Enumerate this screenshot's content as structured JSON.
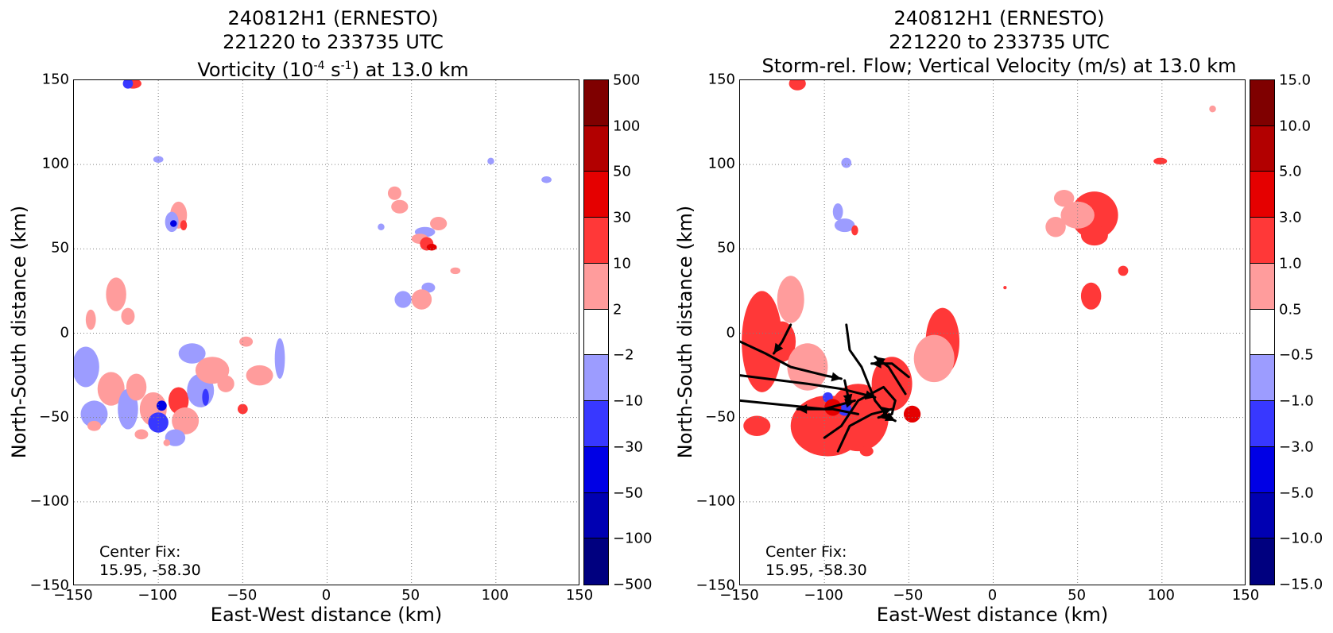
{
  "panels": [
    {
      "id": "left",
      "title_lines": [
        "240812H1 (ERNESTO)",
        "221220 to 233735 UTC"
      ],
      "title_line3": {
        "pre": "Vorticity (10",
        "sup1": "-4",
        "mid": " s",
        "sup2": "-1",
        "post": ") at 13.0 km"
      },
      "xlabel": "East-West distance (km)",
      "ylabel": "North-South distance (km)",
      "center_fix_label": "Center Fix:",
      "center_fix_value": "15.95, -58.30",
      "colorbar_labels": [
        "500",
        "100",
        "50",
        "30",
        "10",
        "2",
        "−2",
        "−10",
        "−30",
        "−50",
        "−100",
        "−500"
      ]
    },
    {
      "id": "right",
      "title_lines": [
        "240812H1 (ERNESTO)",
        "221220 to 233735 UTC"
      ],
      "title_line3": {
        "pre": "Storm-rel. Flow; Vertical Velocity (m/s) at 13.0 km",
        "sup1": "",
        "mid": "",
        "sup2": "",
        "post": ""
      },
      "xlabel": "East-West distance (km)",
      "ylabel": "North-South distance (km)",
      "center_fix_label": "Center Fix:",
      "center_fix_value": "15.95, -58.30",
      "colorbar_labels": [
        "15.0",
        "10.0",
        "5.0",
        "3.0",
        "1.0",
        "0.5",
        "−0.5",
        "−1.0",
        "−3.0",
        "−5.0",
        "−10.0",
        "−15.0"
      ]
    }
  ],
  "colors": {
    "levels": [
      "#7f0000",
      "#b20000",
      "#e50000",
      "#ff3838",
      "#ff9c9c",
      "#ffffff",
      "#9c9cff",
      "#3838ff",
      "#0000e5",
      "#0000b2",
      "#00007f"
    ],
    "streamline": "#000000",
    "grid": "#808080"
  },
  "chart_data": [
    {
      "type": "heatmap",
      "title": "240812H1 (ERNESTO) 221220 to 233735 UTC Vorticity (10^-4 s^-1) at 13.0 km",
      "xlabel": "East-West distance (km)",
      "ylabel": "North-South distance (km)",
      "xlim": [
        -150,
        150
      ],
      "ylim": [
        -150,
        150
      ],
      "xticks": [
        "−150",
        "−100",
        "−50",
        "0",
        "50",
        "100",
        "150"
      ],
      "yticks": [
        "150",
        "100",
        "50",
        "0",
        "−50",
        "−100",
        "−150"
      ],
      "grid": true,
      "colorbar_levels": [
        500,
        100,
        50,
        30,
        10,
        2,
        -2,
        -10,
        -30,
        -50,
        -100,
        -500
      ],
      "center_fix": [
        15.95,
        -58.3
      ],
      "features": [
        {
          "x": -115,
          "y": 148,
          "w": 5,
          "h": 3,
          "level": 3
        },
        {
          "x": -118,
          "y": 148,
          "w": 3,
          "h": 3,
          "level": 7
        },
        {
          "x": -100,
          "y": 103,
          "w": 3,
          "h": 2,
          "level": 6
        },
        {
          "x": -88,
          "y": 70,
          "w": 5,
          "h": 8,
          "level": 4
        },
        {
          "x": -92,
          "y": 66,
          "w": 4,
          "h": 6,
          "level": 6
        },
        {
          "x": -91,
          "y": 65,
          "w": 2,
          "h": 2,
          "level": 8
        },
        {
          "x": -85,
          "y": 64,
          "w": 2,
          "h": 3,
          "level": 3
        },
        {
          "x": 40,
          "y": 83,
          "w": 4,
          "h": 4,
          "level": 4
        },
        {
          "x": 43,
          "y": 75,
          "w": 5,
          "h": 4,
          "level": 4
        },
        {
          "x": 32,
          "y": 63,
          "w": 2,
          "h": 2,
          "level": 6
        },
        {
          "x": 66,
          "y": 65,
          "w": 5,
          "h": 4,
          "level": 4
        },
        {
          "x": 58,
          "y": 60,
          "w": 6,
          "h": 3,
          "level": 6
        },
        {
          "x": 55,
          "y": 56,
          "w": 5,
          "h": 3,
          "level": 4
        },
        {
          "x": 59,
          "y": 53,
          "w": 4,
          "h": 4,
          "level": 3
        },
        {
          "x": 62,
          "y": 51,
          "w": 3,
          "h": 2,
          "level": 2
        },
        {
          "x": 76,
          "y": 37,
          "w": 3,
          "h": 2,
          "level": 4
        },
        {
          "x": 60,
          "y": 27,
          "w": 4,
          "h": 3,
          "level": 6
        },
        {
          "x": 45,
          "y": 20,
          "w": 5,
          "h": 5,
          "level": 6
        },
        {
          "x": 56,
          "y": 20,
          "w": 6,
          "h": 6,
          "level": 4
        },
        {
          "x": 97,
          "y": 102,
          "w": 2,
          "h": 2,
          "level": 6
        },
        {
          "x": 130,
          "y": 91,
          "w": 3,
          "h": 2,
          "level": 6
        },
        {
          "x": -125,
          "y": 23,
          "w": 6,
          "h": 10,
          "level": 4
        },
        {
          "x": -118,
          "y": 10,
          "w": 4,
          "h": 5,
          "level": 4
        },
        {
          "x": -140,
          "y": 8,
          "w": 3,
          "h": 6,
          "level": 4
        },
        {
          "x": -143,
          "y": -20,
          "w": 8,
          "h": 12,
          "level": 6
        },
        {
          "x": -138,
          "y": -48,
          "w": 8,
          "h": 8,
          "level": 6
        },
        {
          "x": -128,
          "y": -33,
          "w": 8,
          "h": 10,
          "level": 4
        },
        {
          "x": -118,
          "y": -45,
          "w": 6,
          "h": 12,
          "level": 6
        },
        {
          "x": -113,
          "y": -32,
          "w": 6,
          "h": 8,
          "level": 4
        },
        {
          "x": -103,
          "y": -45,
          "w": 8,
          "h": 10,
          "level": 4
        },
        {
          "x": -100,
          "y": -53,
          "w": 6,
          "h": 6,
          "level": 7
        },
        {
          "x": -98,
          "y": -43,
          "w": 3,
          "h": 3,
          "level": 8
        },
        {
          "x": -88,
          "y": -40,
          "w": 6,
          "h": 8,
          "level": 3
        },
        {
          "x": -84,
          "y": -52,
          "w": 8,
          "h": 8,
          "level": 4
        },
        {
          "x": -80,
          "y": -12,
          "w": 8,
          "h": 6,
          "level": 6
        },
        {
          "x": -75,
          "y": -34,
          "w": 8,
          "h": 10,
          "level": 6
        },
        {
          "x": -72,
          "y": -38,
          "w": 2,
          "h": 5,
          "level": 7
        },
        {
          "x": -68,
          "y": -22,
          "w": 10,
          "h": 8,
          "level": 4
        },
        {
          "x": -60,
          "y": -30,
          "w": 5,
          "h": 5,
          "level": 4
        },
        {
          "x": -50,
          "y": -45,
          "w": 3,
          "h": 3,
          "level": 3
        },
        {
          "x": -40,
          "y": -25,
          "w": 8,
          "h": 6,
          "level": 4
        },
        {
          "x": -48,
          "y": -5,
          "w": 4,
          "h": 3,
          "level": 4
        },
        {
          "x": -28,
          "y": -15,
          "w": 3,
          "h": 12,
          "level": 6
        },
        {
          "x": -90,
          "y": -62,
          "w": 6,
          "h": 5,
          "level": 6
        },
        {
          "x": -110,
          "y": -60,
          "w": 4,
          "h": 3,
          "level": 4
        },
        {
          "x": -138,
          "y": -55,
          "w": 4,
          "h": 3,
          "level": 4
        },
        {
          "x": -95,
          "y": -65,
          "w": 2,
          "h": 2,
          "level": 4
        }
      ]
    },
    {
      "type": "heatmap",
      "title": "240812H1 (ERNESTO) 221220 to 233735 UTC Storm-rel. Flow; Vertical Velocity (m/s) at 13.0 km",
      "xlabel": "East-West distance (km)",
      "ylabel": "North-South distance (km)",
      "xlim": [
        -150,
        150
      ],
      "ylim": [
        -150,
        150
      ],
      "xticks": [
        "−150",
        "−100",
        "−50",
        "0",
        "50",
        "100",
        "150"
      ],
      "yticks": [
        "150",
        "100",
        "50",
        "0",
        "−50",
        "−100",
        "−150"
      ],
      "grid": true,
      "colorbar_levels": [
        15.0,
        10.0,
        5.0,
        3.0,
        1.0,
        0.5,
        -0.5,
        -1.0,
        -3.0,
        -5.0,
        -10.0,
        -15.0
      ],
      "center_fix": [
        15.95,
        -58.3
      ],
      "features": [
        {
          "x": -116,
          "y": 148,
          "w": 5,
          "h": 4,
          "level": 3
        },
        {
          "x": -87,
          "y": 101,
          "w": 3,
          "h": 3,
          "level": 6
        },
        {
          "x": -92,
          "y": 72,
          "w": 3,
          "h": 5,
          "level": 6
        },
        {
          "x": -88,
          "y": 64,
          "w": 6,
          "h": 4,
          "level": 6
        },
        {
          "x": -82,
          "y": 61,
          "w": 2,
          "h": 3,
          "level": 3
        },
        {
          "x": 42,
          "y": 80,
          "w": 6,
          "h": 5,
          "level": 4
        },
        {
          "x": 60,
          "y": 70,
          "w": 14,
          "h": 14,
          "level": 3
        },
        {
          "x": 50,
          "y": 70,
          "w": 10,
          "h": 8,
          "level": 4
        },
        {
          "x": 37,
          "y": 63,
          "w": 6,
          "h": 6,
          "level": 4
        },
        {
          "x": 60,
          "y": 58,
          "w": 8,
          "h": 6,
          "level": 3
        },
        {
          "x": 77,
          "y": 37,
          "w": 3,
          "h": 3,
          "level": 3
        },
        {
          "x": 99,
          "y": 102,
          "w": 4,
          "h": 2,
          "level": 3
        },
        {
          "x": 130,
          "y": 133,
          "w": 2,
          "h": 2,
          "level": 4
        },
        {
          "x": 7,
          "y": 27,
          "w": 1,
          "h": 1,
          "level": 3
        },
        {
          "x": 58,
          "y": 22,
          "w": 6,
          "h": 8,
          "level": 3
        },
        {
          "x": -137,
          "y": -5,
          "w": 12,
          "h": 30,
          "level": 3
        },
        {
          "x": -120,
          "y": 20,
          "w": 8,
          "h": 14,
          "level": 4
        },
        {
          "x": -125,
          "y": -5,
          "w": 8,
          "h": 12,
          "level": 3
        },
        {
          "x": -110,
          "y": -20,
          "w": 12,
          "h": 14,
          "level": 4
        },
        {
          "x": -98,
          "y": -55,
          "w": 22,
          "h": 18,
          "level": 3
        },
        {
          "x": -80,
          "y": -50,
          "w": 18,
          "h": 20,
          "level": 3
        },
        {
          "x": -60,
          "y": -30,
          "w": 12,
          "h": 16,
          "level": 3
        },
        {
          "x": -48,
          "y": -48,
          "w": 5,
          "h": 5,
          "level": 2
        },
        {
          "x": -30,
          "y": -5,
          "w": 10,
          "h": 20,
          "level": 3
        },
        {
          "x": -35,
          "y": -15,
          "w": 12,
          "h": 14,
          "level": 4
        },
        {
          "x": -88,
          "y": -45,
          "w": 4,
          "h": 4,
          "level": 7
        },
        {
          "x": -98,
          "y": -38,
          "w": 3,
          "h": 3,
          "level": 7
        },
        {
          "x": -95,
          "y": -44,
          "w": 5,
          "h": 5,
          "level": 2
        },
        {
          "x": -75,
          "y": -70,
          "w": 4,
          "h": 3,
          "level": 3
        },
        {
          "x": -140,
          "y": -55,
          "w": 8,
          "h": 6,
          "level": 3
        }
      ],
      "streamlines": [
        [
          [
            -120,
            5
          ],
          [
            -125,
            -5
          ],
          [
            -130,
            -12
          ]
        ],
        [
          [
            -150,
            -5
          ],
          [
            -135,
            -12
          ],
          [
            -120,
            -20
          ],
          [
            -100,
            -25
          ],
          [
            -90,
            -27
          ]
        ],
        [
          [
            -150,
            -25
          ],
          [
            -110,
            -30
          ],
          [
            -90,
            -33
          ],
          [
            -70,
            -38
          ]
        ],
        [
          [
            -150,
            -40
          ],
          [
            -120,
            -43
          ],
          [
            -100,
            -45
          ],
          [
            -82,
            -40
          ]
        ],
        [
          [
            -80,
            -48
          ],
          [
            -95,
            -45
          ],
          [
            -116,
            -45
          ]
        ],
        [
          [
            -100,
            -62
          ],
          [
            -90,
            -55
          ],
          [
            -80,
            -40
          ],
          [
            -65,
            -32
          ],
          [
            -58,
            -40
          ],
          [
            -60,
            -48
          ],
          [
            -68,
            -50
          ]
        ],
        [
          [
            -92,
            -70
          ],
          [
            -85,
            -55
          ],
          [
            -72,
            -48
          ],
          [
            -60,
            -45
          ]
        ],
        [
          [
            -87,
            5
          ],
          [
            -85,
            -10
          ],
          [
            -78,
            -20
          ],
          [
            -70,
            -40
          ],
          [
            -62,
            -50
          ],
          [
            -58,
            -52
          ]
        ],
        [
          [
            -50,
            -26
          ],
          [
            -60,
            -18
          ],
          [
            -72,
            -18
          ]
        ],
        [
          [
            -52,
            -36
          ],
          [
            -62,
            -20
          ],
          [
            -70,
            -14
          ]
        ],
        [
          [
            -88,
            -28
          ],
          [
            -85,
            -42
          ]
        ]
      ]
    }
  ]
}
